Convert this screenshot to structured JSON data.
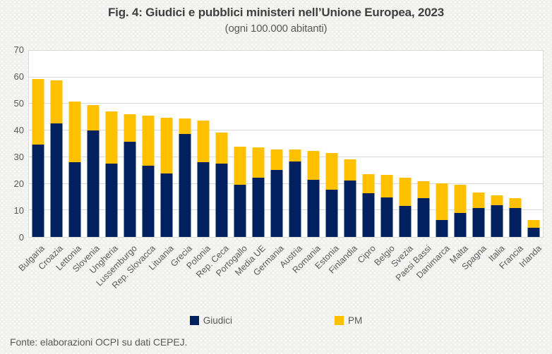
{
  "title": "Fig. 4: Giudici e pubblici ministeri nell’Unione Europea, 2023",
  "subtitle": "(ogni 100.000 abitanti)",
  "footer": "Fonte: elaborazioni OCPI su dati CEPEJ.",
  "legend": [
    {
      "label": "Giudici",
      "color": "#002060"
    },
    {
      "label": "PM",
      "color": "#FFC000"
    }
  ],
  "colors": {
    "giudici": "#002060",
    "pm": "#FFC000",
    "background": "#f1f1f0",
    "plot_background": "#ffffff",
    "grid": "#d9d9d9",
    "axis_text": "#595959",
    "title_text": "#404040"
  },
  "chart_data": {
    "type": "bar",
    "stacked": true,
    "title": "Fig. 4: Giudici e pubblici ministeri nell’Unione Europea, 2023",
    "subtitle": "(ogni 100.000 abitanti)",
    "xlabel": "",
    "ylabel": "",
    "ylim": [
      0,
      70
    ],
    "ytick_step": 10,
    "yticks": [
      0,
      10,
      20,
      30,
      40,
      50,
      60,
      70
    ],
    "grid": true,
    "legend_position": "bottom",
    "categories": [
      "Bulgaria",
      "Croazia",
      "Lettonia",
      "Slovenia",
      "Ungheria",
      "Lussemburgo",
      "Rep. Slovacca",
      "Lituania",
      "Grecia",
      "Polonia",
      "Rep. Ceca",
      "Portogallo",
      "Media UE",
      "Germania",
      "Austria",
      "Romania",
      "Estonia",
      "Finlandia",
      "Cipro",
      "Belgio",
      "Svezia",
      "Paesi Bassi",
      "Danimarca",
      "Malta",
      "Spagna",
      "Italia",
      "Francia",
      "Irlanda"
    ],
    "series": [
      {
        "name": "Giudici",
        "color": "#002060",
        "values": [
          34.6,
          42.3,
          28.0,
          39.8,
          27.5,
          35.4,
          26.7,
          23.8,
          38.5,
          28.0,
          27.4,
          19.6,
          22.0,
          25.0,
          28.2,
          21.4,
          17.6,
          21.0,
          16.4,
          14.7,
          11.7,
          14.6,
          6.3,
          8.9,
          10.7,
          11.9,
          10.9,
          3.3
        ]
      },
      {
        "name": "PM",
        "color": "#FFC000",
        "values": [
          24.3,
          16.2,
          22.5,
          9.3,
          19.4,
          10.3,
          18.6,
          20.8,
          5.8,
          15.5,
          11.5,
          14.1,
          11.3,
          7.6,
          4.4,
          10.7,
          13.6,
          8.0,
          6.9,
          8.5,
          10.5,
          6.2,
          13.7,
          10.7,
          6.0,
          3.6,
          3.6,
          3.1
        ]
      }
    ]
  }
}
